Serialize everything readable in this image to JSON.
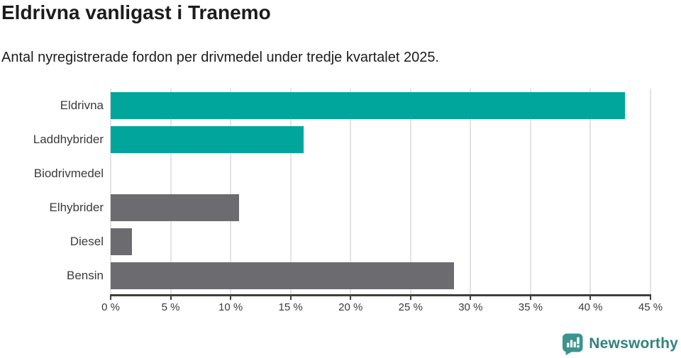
{
  "title": "Eldrivna vanligast i Tranemo",
  "subtitle": "Antal nyregistrerade fordon per drivmedel under tredje kvartalet 2025.",
  "chart_data": {
    "type": "bar",
    "orientation": "horizontal",
    "title": "Eldrivna vanligast i Tranemo",
    "subtitle": "Antal nyregistrerade fordon per drivmedel under tredje kvartalet 2025.",
    "categories": [
      "Eldrivna",
      "Laddhybrider",
      "Biodrivmedel",
      "Elhybrider",
      "Diesel",
      "Bensin"
    ],
    "values": [
      42.9,
      16.1,
      0,
      10.7,
      1.8,
      28.6
    ],
    "unit": "%",
    "xlim": [
      0,
      45
    ],
    "x_ticks": [
      0,
      5,
      10,
      15,
      20,
      25,
      30,
      35,
      40,
      45
    ],
    "x_tick_labels": [
      "0 %",
      "5 %",
      "10 %",
      "15 %",
      "20 %",
      "25 %",
      "30 %",
      "35 %",
      "40 %",
      "45 %"
    ],
    "grid": true,
    "legend": false,
    "bar_colors": [
      "#00a59b",
      "#00a59b",
      "#00a59b",
      "#6b6b70",
      "#6b6b70",
      "#6b6b70"
    ],
    "colors": {
      "highlight": "#00a59b",
      "default": "#6b6b70",
      "gridline": "#e3e3e3",
      "axis": "#3f3f3f"
    }
  },
  "footer": {
    "brand": "Newsworthy",
    "logo_icon": "newsworthy-speech-bubble-bar-chart-icon",
    "brand_icon_color": "#3b948d",
    "brand_text_color": "#31837d"
  }
}
